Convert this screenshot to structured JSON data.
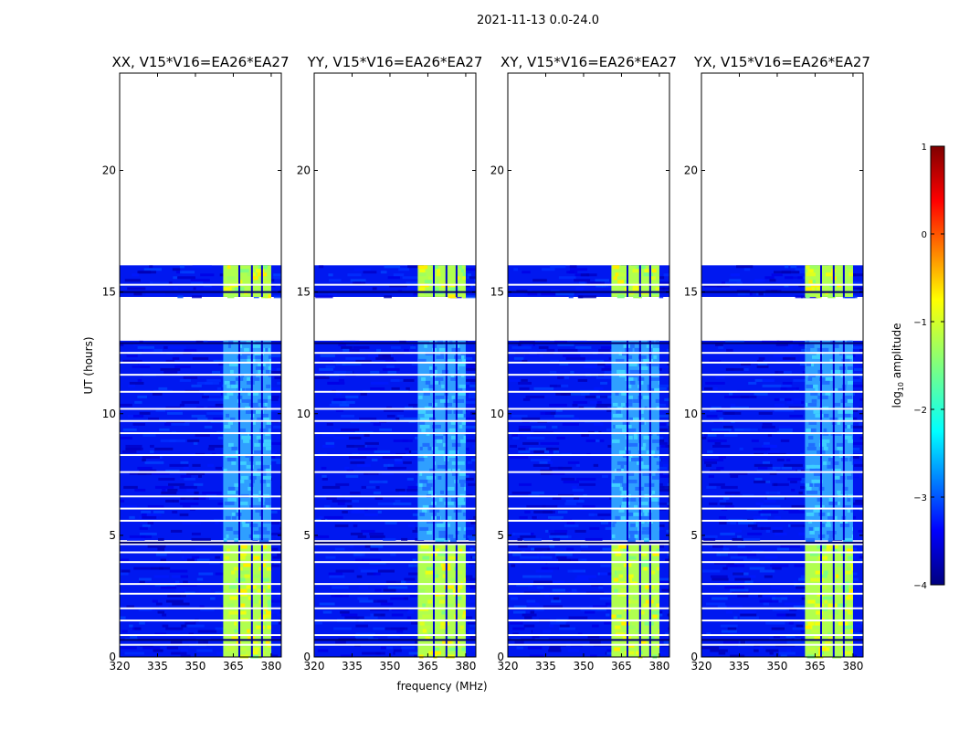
{
  "figure": {
    "suptitle": "2021-11-13 0.0-24.0",
    "xlabel": "frequency (MHz)",
    "ylabel": "UT (hours)"
  },
  "chart_data": {
    "type": "heatmap",
    "x_ticks": [
      "320",
      "335",
      "350",
      "365",
      "380"
    ],
    "x_tick_values": [
      320,
      335,
      350,
      365,
      380
    ],
    "xlim": [
      320,
      384
    ],
    "y_ticks": [
      "0",
      "5",
      "10",
      "15",
      "20"
    ],
    "y_tick_values": [
      0,
      5,
      10,
      15,
      20
    ],
    "ylim": [
      0,
      24
    ],
    "panels": [
      {
        "title": "XX, V15*V16=EA26*EA27",
        "rfi_band_mhz": [
          361,
          380
        ]
      },
      {
        "title": "YY, V15*V16=EA26*EA27",
        "rfi_band_mhz": [
          361,
          380
        ]
      },
      {
        "title": "XY, V15*V16=EA26*EA27",
        "rfi_band_mhz": [
          361,
          380
        ]
      },
      {
        "title": "YX, V15*V16=EA26*EA27",
        "rfi_band_mhz": [
          361,
          380
        ]
      }
    ],
    "data_time_ranges_hours": [
      [
        0,
        4.6
      ],
      [
        4.8,
        13.0
      ],
      [
        14.8,
        16.1
      ]
    ],
    "colorbar": {
      "label": "log",
      "label_sub": "10",
      "label_rest": " amplitude",
      "ticks": [
        "1",
        "0",
        "−1",
        "−2",
        "−3",
        "−4"
      ],
      "tick_values": [
        1,
        0,
        -1,
        -2,
        -3,
        -4
      ],
      "range": [
        -4,
        1
      ],
      "colormap": "jet",
      "colors": [
        "#00007f",
        "#0000ff",
        "#007fff",
        "#00ffff",
        "#7fff7f",
        "#ffff00",
        "#ff7f00",
        "#ff0000",
        "#7f0000"
      ]
    }
  }
}
